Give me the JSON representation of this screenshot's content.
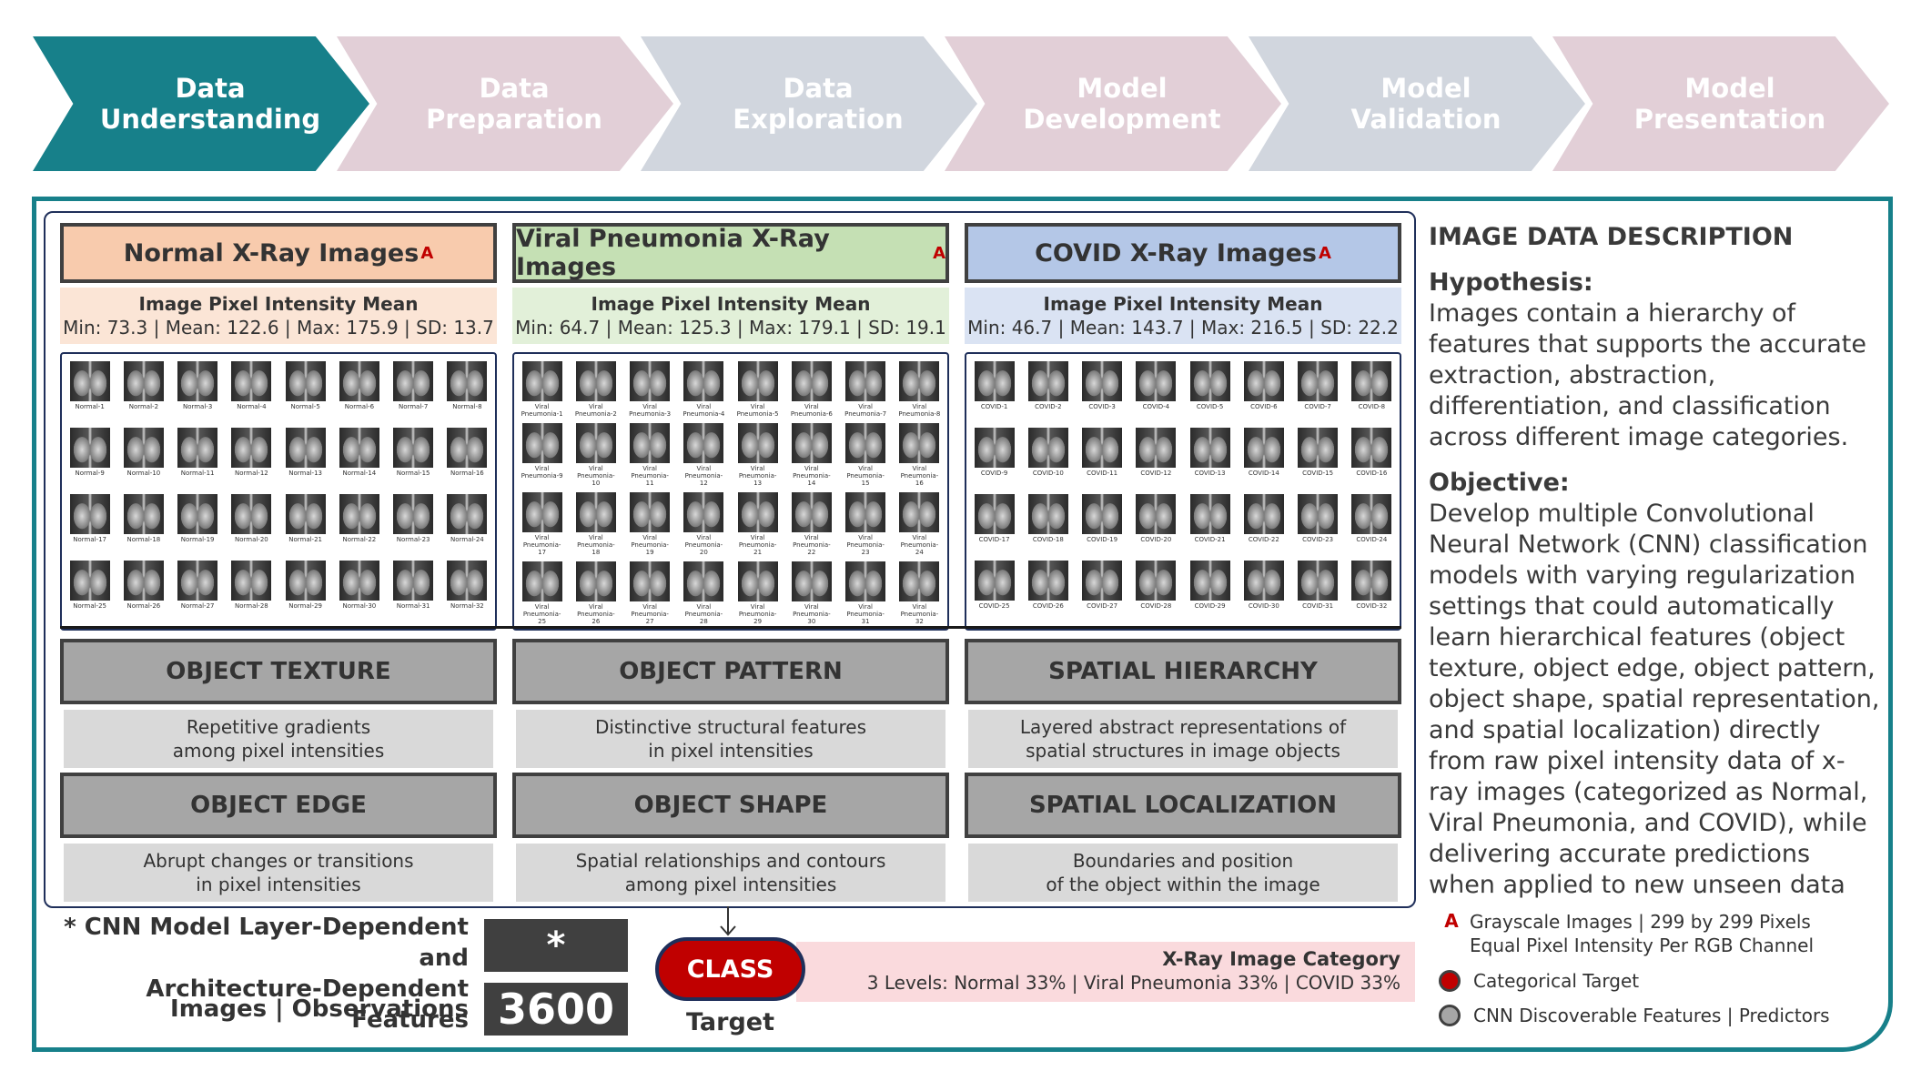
{
  "pipeline": [
    {
      "label": "Data\nUnderstanding",
      "color": "#17808a"
    },
    {
      "label": "Data\nPreparation",
      "color": "#e2cfd7"
    },
    {
      "label": "Data\nExploration",
      "color": "#d1d6de"
    },
    {
      "label": "Model\nDevelopment",
      "color": "#e2cfd7"
    },
    {
      "label": "Model\nValidation",
      "color": "#d1d6de"
    },
    {
      "label": "Model\nPresentation",
      "color": "#e2cfd7"
    }
  ],
  "categories": [
    {
      "title": "Normal X-Ray Images",
      "marker": "A",
      "stats_title": "Image Pixel Intensity Mean",
      "stats": "Min: 73.3 | Mean: 122.6 | Max: 175.9 | SD: 13.7",
      "head_color": "#f8cbad",
      "stats_color": "#fbe5d6",
      "thumbs": [
        "Normal-1",
        "Normal-2",
        "Normal-3",
        "Normal-4",
        "Normal-5",
        "Normal-6",
        "Normal-7",
        "Normal-8",
        "Normal-9",
        "Normal-10",
        "Normal-11",
        "Normal-12",
        "Normal-13",
        "Normal-14",
        "Normal-15",
        "Normal-16",
        "Normal-17",
        "Normal-18",
        "Normal-19",
        "Normal-20",
        "Normal-21",
        "Normal-22",
        "Normal-23",
        "Normal-24",
        "Normal-25",
        "Normal-26",
        "Normal-27",
        "Normal-28",
        "Normal-29",
        "Normal-30",
        "Normal-31",
        "Normal-32"
      ]
    },
    {
      "title": "Viral Pneumonia X-Ray Images",
      "marker": "A",
      "stats_title": "Image Pixel Intensity Mean",
      "stats": "Min: 64.7 | Mean: 125.3 | Max: 179.1 | SD: 19.1",
      "head_color": "#c5e0b4",
      "stats_color": "#e2f0d9",
      "thumbs": [
        "Viral Pneumonia-1",
        "Viral Pneumonia-2",
        "Viral Pneumonia-3",
        "Viral Pneumonia-4",
        "Viral Pneumonia-5",
        "Viral Pneumonia-6",
        "Viral Pneumonia-7",
        "Viral Pneumonia-8",
        "Viral Pneumonia-9",
        "Viral Pneumonia-10",
        "Viral Pneumonia-11",
        "Viral Pneumonia-12",
        "Viral Pneumonia-13",
        "Viral Pneumonia-14",
        "Viral Pneumonia-15",
        "Viral Pneumonia-16",
        "Viral Pneumonia-17",
        "Viral Pneumonia-18",
        "Viral Pneumonia-19",
        "Viral Pneumonia-20",
        "Viral Pneumonia-21",
        "Viral Pneumonia-22",
        "Viral Pneumonia-23",
        "Viral Pneumonia-24",
        "Viral Pneumonia-25",
        "Viral Pneumonia-26",
        "Viral Pneumonia-27",
        "Viral Pneumonia-28",
        "Viral Pneumonia-29",
        "Viral Pneumonia-30",
        "Viral Pneumonia-31",
        "Viral Pneumonia-32"
      ]
    },
    {
      "title": "COVID X-Ray Images",
      "marker": "A",
      "stats_title": "Image Pixel Intensity Mean",
      "stats": "Min: 46.7 | Mean: 143.7 | Max: 216.5 | SD: 22.2",
      "head_color": "#b4c7e7",
      "stats_color": "#dae3f3",
      "thumbs": [
        "COVID-1",
        "COVID-2",
        "COVID-3",
        "COVID-4",
        "COVID-5",
        "COVID-6",
        "COVID-7",
        "COVID-8",
        "COVID-9",
        "COVID-10",
        "COVID-11",
        "COVID-12",
        "COVID-13",
        "COVID-14",
        "COVID-15",
        "COVID-16",
        "COVID-17",
        "COVID-18",
        "COVID-19",
        "COVID-20",
        "COVID-21",
        "COVID-22",
        "COVID-23",
        "COVID-24",
        "COVID-25",
        "COVID-26",
        "COVID-27",
        "COVID-28",
        "COVID-29",
        "COVID-30",
        "COVID-31",
        "COVID-32"
      ]
    }
  ],
  "features": [
    {
      "title": "OBJECT TEXTURE",
      "desc": "Repetitive gradients\namong pixel intensities"
    },
    {
      "title": "OBJECT PATTERN",
      "desc": "Distinctive structural features\nin pixel intensities"
    },
    {
      "title": "SPATIAL HIERARCHY",
      "desc": "Layered abstract representations of\nspatial structures in image objects"
    },
    {
      "title": "OBJECT EDGE",
      "desc": "Abrupt changes or transitions\nin pixel intensities"
    },
    {
      "title": "OBJECT SHAPE",
      "desc": "Spatial relationships and contours\namong pixel intensities"
    },
    {
      "title": "SPATIAL LOCALIZATION",
      "desc": "Boundaries and position\nof the object within the image"
    }
  ],
  "summary": {
    "features_label_1": "* CNN Model Layer-Dependent and",
    "features_label_2": "Architecture-Dependent Features",
    "features_value": "*",
    "obs_label": "Images | Observations",
    "obs_value": "3600"
  },
  "target": {
    "class_label": "CLASS",
    "target_label": "Target",
    "category_title": "X-Ray Image Category",
    "category_levels": "3 Levels: Normal 33% | Viral Pneumonia 33% | COVID 33%"
  },
  "description": {
    "heading": "IMAGE DATA DESCRIPTION",
    "hypothesis_label": "Hypothesis:",
    "hypothesis_text": "Images contain a hierarchy of features that supports the accurate extraction, abstraction, differentiation, and classification across different image categories.",
    "objective_label": "Objective:",
    "objective_text": "Develop multiple Convolutional Neural Network (CNN) classification models with varying regularization settings that could automatically learn hierarchical features (object texture, object edge, object pattern, object shape, spatial representation, and spatial localization) directly from raw pixel intensity data of x-ray images (categorized as Normal, Viral Pneumonia, and COVID), while delivering accurate predictions when applied to new unseen data"
  },
  "legend": {
    "marker": "A",
    "images_line1": "Grayscale Images | 299 by 299 Pixels",
    "images_line2": "Equal Pixel Intensity Per RGB Channel",
    "target": "Categorical Target",
    "predictors": "CNN Discoverable Features | Predictors"
  }
}
